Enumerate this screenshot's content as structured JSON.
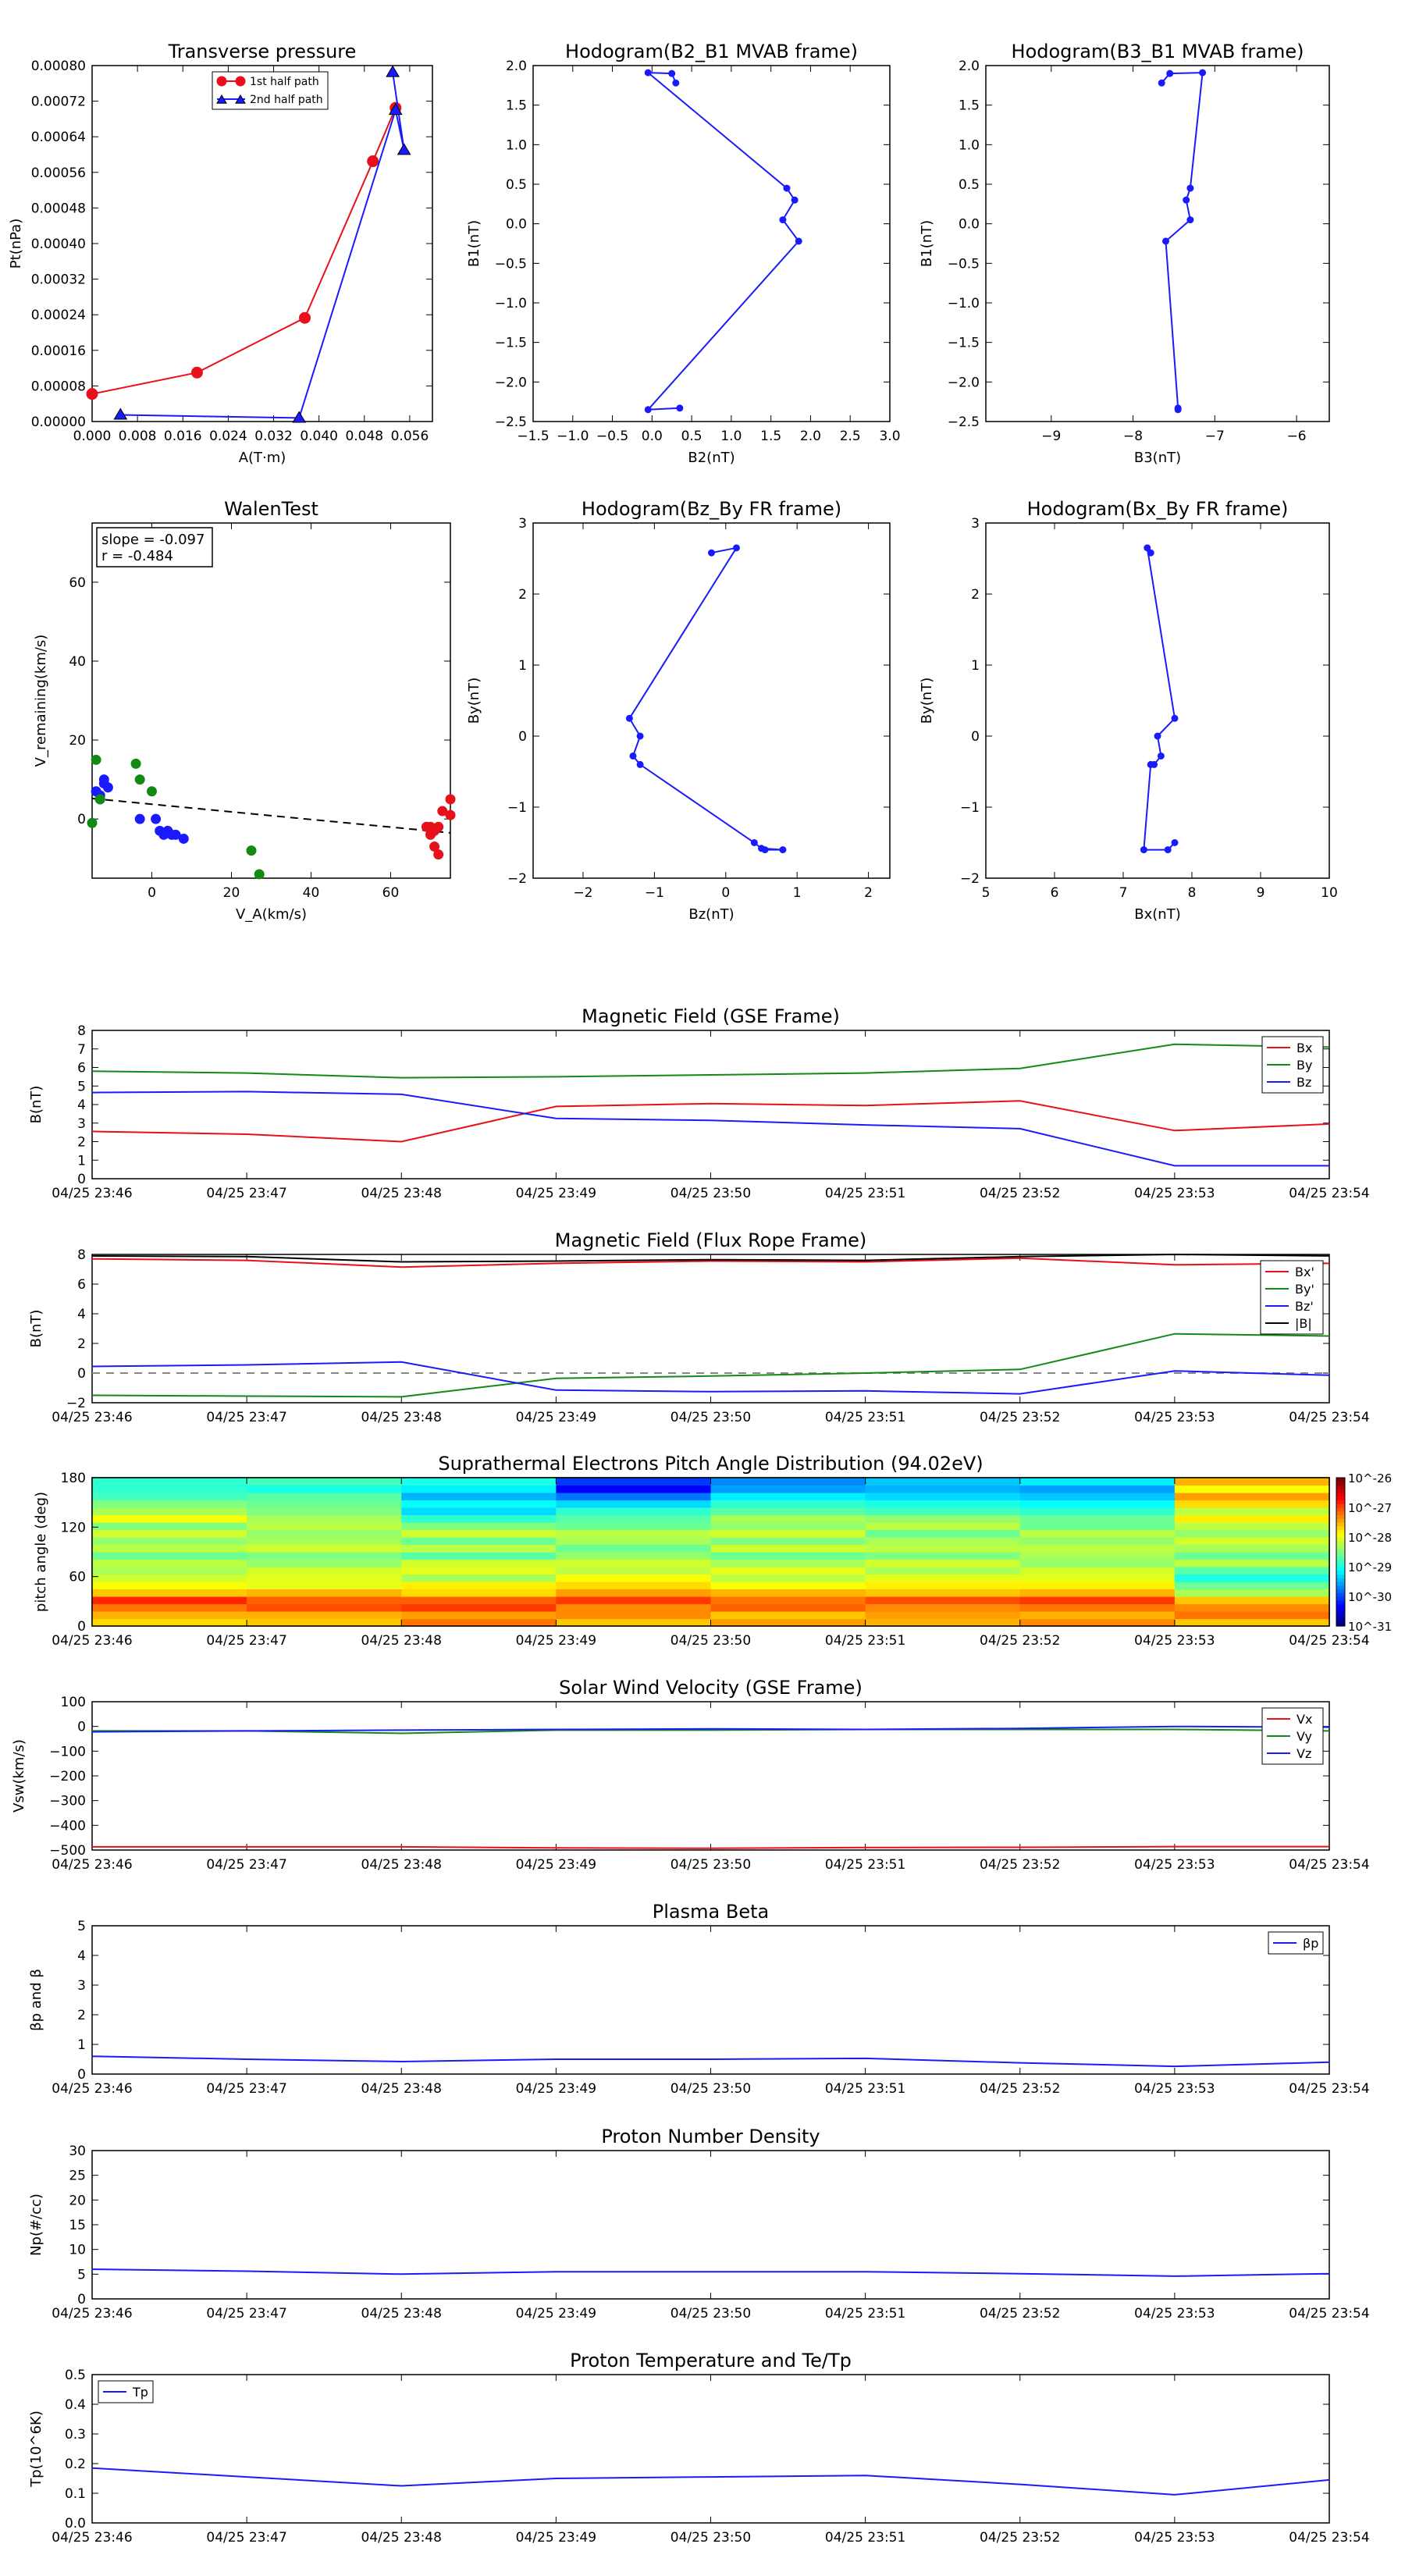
{
  "colors": {
    "red": "#e8101a",
    "green": "#138a13",
    "blue": "#1a1aff",
    "black": "#000000",
    "gray": "#888888"
  },
  "chart_data": [
    {
      "type": "scatter",
      "title": "Transverse pressure",
      "xlabel": "A(T·m)",
      "ylabel": "Pt(nPa)",
      "xlim": [
        0,
        0.06
      ],
      "ylim": [
        0,
        0.0008
      ],
      "xticks": [
        "0.000",
        "0.008",
        "0.016",
        "0.024",
        "0.032",
        "0.040",
        "0.048",
        "0.056"
      ],
      "yticks": [
        "0.00000",
        "0.00008",
        "0.00016",
        "0.00024",
        "0.00032",
        "0.00040",
        "0.00048",
        "0.00056",
        "0.00064",
        "0.00072",
        "0.00080"
      ],
      "legend": {
        "position": "top-center",
        "entries": [
          "1st half path",
          "2nd half path"
        ]
      },
      "series": [
        {
          "name": "1st half path",
          "color": "red",
          "marker": "circle",
          "x": [
            0.0,
            0.0185,
            0.0375,
            0.0495,
            0.0535
          ],
          "y": [
            6.2e-05,
            0.00011,
            0.000233,
            0.000585,
            0.000705
          ]
        },
        {
          "name": "2nd half path",
          "color": "blue",
          "marker": "triangle",
          "x": [
            0.005,
            0.0365,
            0.0535,
            0.055,
            0.053
          ],
          "y": [
            1.5e-05,
            8e-06,
            0.0007,
            0.00061,
            0.000785
          ]
        }
      ]
    },
    {
      "type": "line",
      "title": "Hodogram(B2_B1 MVAB frame)",
      "xlabel": "B2(nT)",
      "ylabel": "B1(nT)",
      "xlim": [
        -1.5,
        3.0
      ],
      "ylim": [
        -2.5,
        2.0
      ],
      "xticks": [
        "−1.5",
        "−1.0",
        "−0.5",
        "0.0",
        "0.5",
        "1.0",
        "1.5",
        "2.0",
        "2.5",
        "3.0"
      ],
      "yticks": [
        "−2.5",
        "−2.0",
        "−1.5",
        "−1.0",
        "−0.5",
        "0.0",
        "0.5",
        "1.0",
        "1.5",
        "2.0"
      ],
      "series": [
        {
          "color": "blue",
          "x": [
            0.3,
            0.25,
            -0.05,
            1.7,
            1.8,
            1.65,
            1.85,
            -0.05,
            0.35
          ],
          "y": [
            1.78,
            1.9,
            1.91,
            0.45,
            0.3,
            0.05,
            -0.22,
            -2.35,
            -2.33
          ]
        }
      ]
    },
    {
      "type": "line",
      "title": "Hodogram(B3_B1 MVAB frame)",
      "xlabel": "B3(nT)",
      "ylabel": "B1(nT)",
      "xlim": [
        -9.8,
        -5.6
      ],
      "ylim": [
        -2.5,
        2.0
      ],
      "xticks": [
        "−9",
        "−8",
        "−7",
        "−6"
      ],
      "yticks": [
        "−2.5",
        "−2.0",
        "−1.5",
        "−1.0",
        "−0.5",
        "0.0",
        "0.5",
        "1.0",
        "1.5",
        "2.0"
      ],
      "series": [
        {
          "color": "blue",
          "x": [
            -7.65,
            -7.55,
            -7.15,
            -7.3,
            -7.35,
            -7.3,
            -7.6,
            -7.45,
            -7.45
          ],
          "y": [
            1.78,
            1.9,
            1.91,
            0.45,
            0.3,
            0.05,
            -0.22,
            -2.33,
            -2.35
          ]
        }
      ]
    },
    {
      "type": "scatter",
      "title": "WalenTest",
      "xlabel": "V_A(km/s)",
      "ylabel": "V_remaining(km/s)",
      "xlim": [
        -15,
        75
      ],
      "ylim": [
        -15,
        75
      ],
      "xticks": [
        "0",
        "20",
        "40",
        "60"
      ],
      "yticks": [
        "0",
        "20",
        "40",
        "60"
      ],
      "annotation": [
        "slope = -0.097",
        "r = -0.484"
      ],
      "fit_line": {
        "x": [
          -15,
          75
        ],
        "y": [
          5.2,
          -3.5
        ]
      },
      "series": [
        {
          "color": "blue",
          "x": [
            -14,
            -13,
            -12,
            -12,
            -11,
            -3,
            1,
            2,
            3,
            4,
            5,
            6,
            8,
            -13
          ],
          "y": [
            7,
            6,
            9,
            10,
            8,
            0,
            0,
            -3,
            -4,
            -3,
            -4,
            -4,
            -5,
            5
          ]
        },
        {
          "color": "green",
          "x": [
            -15,
            -14,
            -13,
            -4,
            -3,
            0,
            25,
            27
          ],
          "y": [
            -1,
            15,
            5,
            14,
            10,
            7,
            -8,
            -14
          ]
        },
        {
          "color": "red",
          "x": [
            69,
            70,
            70,
            71,
            71,
            72,
            72,
            73,
            75,
            75
          ],
          "y": [
            -2,
            -4,
            -2,
            -3,
            -7,
            -9,
            -2,
            2,
            5,
            1
          ]
        }
      ]
    },
    {
      "type": "line",
      "title": "Hodogram(Bz_By FR frame)",
      "xlabel": "Bz(nT)",
      "ylabel": "By(nT)",
      "xlim": [
        -2.7,
        2.3
      ],
      "ylim": [
        -2,
        3
      ],
      "xticks": [
        "−2",
        "−1",
        "0",
        "1",
        "2"
      ],
      "yticks": [
        "−2",
        "−1",
        "0",
        "1",
        "2",
        "3"
      ],
      "series": [
        {
          "color": "blue",
          "x": [
            -0.2,
            0.15,
            -1.35,
            -1.2,
            -1.3,
            -1.2,
            0.4,
            0.5,
            0.8,
            0.55
          ],
          "y": [
            2.58,
            2.65,
            0.25,
            0.0,
            -0.28,
            -0.4,
            -1.5,
            -1.58,
            -1.6,
            -1.6
          ]
        }
      ]
    },
    {
      "type": "line",
      "title": "Hodogram(Bx_By FR frame)",
      "xlabel": "Bx(nT)",
      "ylabel": "By(nT)",
      "xlim": [
        5,
        10
      ],
      "ylim": [
        -2,
        3
      ],
      "xticks": [
        "5",
        "6",
        "7",
        "8",
        "9",
        "10"
      ],
      "yticks": [
        "−2",
        "−1",
        "0",
        "1",
        "2",
        "3"
      ],
      "series": [
        {
          "color": "blue",
          "x": [
            7.4,
            7.35,
            7.75,
            7.5,
            7.55,
            7.45,
            7.4,
            7.3,
            7.65,
            7.75
          ],
          "y": [
            2.58,
            2.65,
            0.25,
            0.0,
            -0.28,
            -0.4,
            -0.4,
            -1.6,
            -1.6,
            -1.5
          ]
        }
      ]
    },
    {
      "type": "line",
      "title": "Magnetic Field (GSE Frame)",
      "ylabel": "B(nT)",
      "ylim": [
        0,
        8
      ],
      "yticks": [
        "0",
        "1",
        "2",
        "3",
        "4",
        "5",
        "6",
        "7",
        "8"
      ],
      "categories": [
        "04/25 23:46",
        "04/25 23:47",
        "04/25 23:48",
        "04/25 23:49",
        "04/25 23:50",
        "04/25 23:51",
        "04/25 23:52",
        "04/25 23:53",
        "04/25 23:54"
      ],
      "legend": {
        "position": "top-right"
      },
      "series": [
        {
          "name": "Bx",
          "color": "red",
          "values": [
            2.55,
            2.4,
            2.0,
            3.9,
            4.05,
            3.95,
            4.2,
            2.6,
            2.95
          ]
        },
        {
          "name": "By",
          "color": "green",
          "values": [
            5.8,
            5.7,
            5.45,
            5.5,
            5.6,
            5.7,
            5.95,
            7.25,
            7.1
          ]
        },
        {
          "name": "Bz",
          "color": "blue",
          "values": [
            4.65,
            4.7,
            4.55,
            3.25,
            3.15,
            2.9,
            2.7,
            0.7,
            0.7
          ]
        }
      ]
    },
    {
      "type": "line",
      "title": "Magnetic Field (Flux Rope Frame)",
      "ylabel": "B(nT)",
      "ylim": [
        -2,
        8
      ],
      "yticks": [
        "−2",
        "0",
        "2",
        "4",
        "6",
        "8"
      ],
      "categories": [
        "04/25 23:46",
        "04/25 23:47",
        "04/25 23:48",
        "04/25 23:49",
        "04/25 23:50",
        "04/25 23:51",
        "04/25 23:52",
        "04/25 23:53",
        "04/25 23:54"
      ],
      "legend": {
        "position": "top-right"
      },
      "reference_line": 0,
      "series": [
        {
          "name": "Bx'",
          "color": "red",
          "values": [
            7.7,
            7.6,
            7.15,
            7.4,
            7.55,
            7.5,
            7.75,
            7.3,
            7.4
          ]
        },
        {
          "name": "By'",
          "color": "green",
          "values": [
            -1.5,
            -1.55,
            -1.6,
            -0.35,
            -0.2,
            0.0,
            0.25,
            2.65,
            2.5
          ]
        },
        {
          "name": "Bz'",
          "color": "blue",
          "values": [
            0.45,
            0.55,
            0.75,
            -1.15,
            -1.25,
            -1.2,
            -1.4,
            0.15,
            -0.15
          ]
        },
        {
          "name": "|B|",
          "color": "black",
          "values": [
            7.9,
            7.85,
            7.5,
            7.55,
            7.65,
            7.6,
            7.85,
            8.0,
            7.9
          ]
        }
      ]
    },
    {
      "type": "heatmap",
      "title": "Suprathermal Electrons Pitch Angle Distribution (94.02eV)",
      "ylabel": "pitch angle (deg)",
      "ylim": [
        0,
        180
      ],
      "yticks": [
        "0",
        "60",
        "120",
        "180"
      ],
      "categories": [
        "04/25 23:46",
        "04/25 23:47",
        "04/25 23:48",
        "04/25 23:49",
        "04/25 23:50",
        "04/25 23:51",
        "04/25 23:52",
        "04/25 23:53",
        "04/25 23:54"
      ],
      "colorbar": {
        "ticks": [
          "10^-26",
          "10^-27",
          "10^-28",
          "10^-29",
          "10^-30",
          "10^-31"
        ],
        "log_range": [
          -31,
          -26
        ]
      },
      "bin_width_deg": 9,
      "cells_log10_value": [
        [
          -27.7,
          -27.6,
          -27.2,
          -27.6,
          -27.4,
          -27.5,
          -27.3,
          -27.6
        ],
        [
          -27.5,
          -27.5,
          -27.4,
          -27.3,
          -27.6,
          -27.4,
          -27.5,
          -27.2
        ],
        [
          -27.2,
          -27.0,
          -26.9,
          -27.3,
          -27.1,
          -27.3,
          -27.2,
          -27.3
        ],
        [
          -26.8,
          -27.1,
          -27.1,
          -26.9,
          -27.2,
          -27.0,
          -26.9,
          -27.6
        ],
        [
          -27.6,
          -27.5,
          -27.7,
          -27.4,
          -27.5,
          -27.6,
          -27.5,
          -28.3
        ],
        [
          -27.9,
          -28.0,
          -27.8,
          -27.7,
          -27.9,
          -27.8,
          -27.8,
          -28.6
        ],
        [
          -28.1,
          -28.0,
          -28.3,
          -27.9,
          -28.2,
          -28.0,
          -28.0,
          -29.0
        ],
        [
          -28.3,
          -28.1,
          -28.0,
          -28.2,
          -28.0,
          -28.3,
          -28.1,
          -28.7
        ],
        [
          -28.2,
          -28.4,
          -28.1,
          -28.1,
          -28.3,
          -28.1,
          -28.4,
          -28.2
        ],
        [
          -28.6,
          -28.5,
          -28.7,
          -28.4,
          -28.6,
          -28.5,
          -28.3,
          -28.6
        ],
        [
          -28.2,
          -28.1,
          -28.2,
          -28.6,
          -28.1,
          -28.2,
          -28.2,
          -28.3
        ],
        [
          -28.4,
          -28.3,
          -28.6,
          -28.3,
          -28.5,
          -28.3,
          -28.4,
          -28.1
        ],
        [
          -28.1,
          -28.4,
          -28.1,
          -28.2,
          -28.1,
          -28.6,
          -28.2,
          -28.4
        ],
        [
          -28.5,
          -28.2,
          -28.5,
          -28.6,
          -28.4,
          -28.2,
          -28.6,
          -28.2
        ],
        [
          -27.9,
          -28.3,
          -28.9,
          -28.7,
          -28.3,
          -28.4,
          -28.6,
          -27.8
        ],
        [
          -28.3,
          -28.5,
          -29.3,
          -28.9,
          -28.7,
          -28.8,
          -28.9,
          -28.2
        ],
        [
          -28.5,
          -28.6,
          -29.1,
          -29.3,
          -28.9,
          -29.0,
          -29.1,
          -27.7
        ],
        [
          -28.8,
          -28.7,
          -29.5,
          -29.8,
          -29.2,
          -29.3,
          -29.4,
          -27.4
        ],
        [
          -28.9,
          -29.0,
          -29.2,
          -30.4,
          -29.6,
          -29.5,
          -29.6,
          -27.9
        ],
        [
          -28.9,
          -28.8,
          -29.0,
          -30.1,
          -29.7,
          -29.4,
          -29.2,
          -27.5
        ]
      ]
    },
    {
      "type": "line",
      "title": "Solar Wind Velocity (GSE Frame)",
      "ylabel": "Vsw(km/s)",
      "ylim": [
        -500,
        100
      ],
      "yticks": [
        "−500",
        "−400",
        "−300",
        "−200",
        "−100",
        "0",
        "100"
      ],
      "categories": [
        "04/25 23:46",
        "04/25 23:47",
        "04/25 23:48",
        "04/25 23:49",
        "04/25 23:50",
        "04/25 23:51",
        "04/25 23:52",
        "04/25 23:53",
        "04/25 23:54"
      ],
      "legend": {
        "position": "top-right"
      },
      "series": [
        {
          "name": "Vx",
          "color": "red",
          "values": [
            -487,
            -487,
            -487,
            -491,
            -493,
            -490,
            -489,
            -486,
            -486
          ]
        },
        {
          "name": "Vy",
          "color": "green",
          "values": [
            -18,
            -18,
            -28,
            -15,
            -15,
            -12,
            -12,
            -12,
            -18
          ]
        },
        {
          "name": "Vz",
          "color": "blue",
          "values": [
            -22,
            -18,
            -15,
            -12,
            -10,
            -12,
            -8,
            0,
            -3
          ]
        }
      ]
    },
    {
      "type": "line",
      "title": "Plasma Beta",
      "ylabel": "βp and β",
      "ylim": [
        0,
        5
      ],
      "yticks": [
        "0",
        "1",
        "2",
        "3",
        "4",
        "5"
      ],
      "categories": [
        "04/25 23:46",
        "04/25 23:47",
        "04/25 23:48",
        "04/25 23:49",
        "04/25 23:50",
        "04/25 23:51",
        "04/25 23:52",
        "04/25 23:53",
        "04/25 23:54"
      ],
      "legend": {
        "position": "top-right"
      },
      "series": [
        {
          "name": "βp",
          "color": "blue",
          "values": [
            0.6,
            0.5,
            0.42,
            0.5,
            0.5,
            0.53,
            0.38,
            0.26,
            0.4
          ]
        }
      ]
    },
    {
      "type": "line",
      "title": "Proton Number Density",
      "ylabel": "Np(#/cc)",
      "ylim": [
        0,
        30
      ],
      "yticks": [
        "0",
        "5",
        "10",
        "15",
        "20",
        "25",
        "30"
      ],
      "categories": [
        "04/25 23:46",
        "04/25 23:47",
        "04/25 23:48",
        "04/25 23:49",
        "04/25 23:50",
        "04/25 23:51",
        "04/25 23:52",
        "04/25 23:53",
        "04/25 23:54"
      ],
      "series": [
        {
          "color": "blue",
          "values": [
            6.0,
            5.6,
            5.0,
            5.5,
            5.5,
            5.5,
            5.1,
            4.6,
            5.1
          ]
        }
      ]
    },
    {
      "type": "line",
      "title": "Proton Temperature and Te/Tp",
      "ylabel": "Tp(10^6K)",
      "ylim": [
        0,
        0.5
      ],
      "yticks": [
        "0.0",
        "0.1",
        "0.2",
        "0.3",
        "0.4",
        "0.5"
      ],
      "categories": [
        "04/25 23:46",
        "04/25 23:47",
        "04/25 23:48",
        "04/25 23:49",
        "04/25 23:50",
        "04/25 23:51",
        "04/25 23:52",
        "04/25 23:53",
        "04/25 23:54"
      ],
      "legend": {
        "position": "top-left"
      },
      "series": [
        {
          "name": "Tp",
          "color": "blue",
          "values": [
            0.185,
            0.155,
            0.125,
            0.15,
            0.155,
            0.16,
            0.13,
            0.095,
            0.145
          ]
        }
      ]
    }
  ]
}
